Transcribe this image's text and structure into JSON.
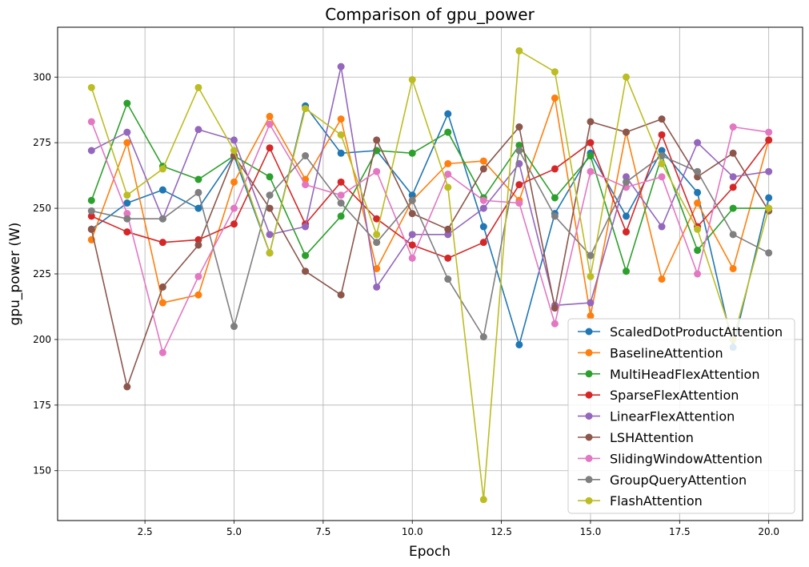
{
  "chart_data": {
    "type": "line",
    "title": "Comparison of gpu_power",
    "xlabel": "Epoch",
    "ylabel": "gpu_power (W)",
    "xlim": [
      0.05,
      20.95
    ],
    "ylim": [
      131,
      319
    ],
    "xticks": [
      2.5,
      5.0,
      7.5,
      10.0,
      12.5,
      15.0,
      17.5,
      20.0
    ],
    "xtick_labels": [
      "2.5",
      "5.0",
      "7.5",
      "10.0",
      "12.5",
      "15.0",
      "17.5",
      "20.0"
    ],
    "yticks": [
      150,
      175,
      200,
      225,
      250,
      275,
      300
    ],
    "ytick_labels": [
      "150",
      "175",
      "200",
      "225",
      "250",
      "275",
      "300"
    ],
    "grid": true,
    "legend_position": "lower-right",
    "x": [
      1,
      2,
      3,
      4,
      5,
      6,
      7,
      8,
      9,
      10,
      11,
      12,
      13,
      14,
      15,
      16,
      17,
      18,
      19,
      20
    ],
    "series": [
      {
        "name": "ScaledDotProductAttention",
        "color": "#1f77b4",
        "values": [
          242,
          252,
          257,
          250,
          270,
          233,
          289,
          271,
          272,
          255,
          286,
          243,
          198,
          248,
          271,
          247,
          272,
          256,
          197,
          254
        ]
      },
      {
        "name": "BaselineAttention",
        "color": "#ff7f0e",
        "values": [
          238,
          275,
          214,
          217,
          260,
          285,
          261,
          284,
          227,
          253,
          267,
          268,
          253,
          292,
          209,
          279,
          223,
          252,
          227,
          276
        ]
      },
      {
        "name": "MultiHeadFlexAttention",
        "color": "#2ca02c",
        "values": [
          253,
          290,
          266,
          261,
          270,
          262,
          232,
          247,
          272,
          271,
          279,
          254,
          274,
          254,
          270,
          226,
          270,
          234,
          250,
          250
        ]
      },
      {
        "name": "SparseFlexAttention",
        "color": "#d62728",
        "values": [
          247,
          241,
          237,
          238,
          244,
          273,
          244,
          260,
          246,
          236,
          231,
          237,
          259,
          265,
          275,
          241,
          278,
          243,
          258,
          276
        ]
      },
      {
        "name": "LinearFlexAttention",
        "color": "#9467bd",
        "values": [
          272,
          279,
          246,
          280,
          276,
          240,
          243,
          304,
          220,
          240,
          240,
          250,
          267,
          213,
          214,
          262,
          243,
          275,
          262,
          264
        ]
      },
      {
        "name": "LSHAttention",
        "color": "#8c564b",
        "values": [
          242,
          182,
          220,
          236,
          270,
          250,
          226,
          217,
          276,
          248,
          242,
          265,
          281,
          212,
          283,
          279,
          284,
          262,
          271,
          249
        ]
      },
      {
        "name": "SlidingWindowAttention",
        "color": "#e377c2",
        "values": [
          283,
          248,
          195,
          224,
          250,
          282,
          259,
          255,
          264,
          231,
          263,
          253,
          252,
          206,
          264,
          258,
          262,
          225,
          281,
          279
        ]
      },
      {
        "name": "GroupQueryAttention",
        "color": "#7f7f7f",
        "values": [
          249,
          246,
          246,
          256,
          205,
          255,
          270,
          252,
          237,
          253,
          223,
          201,
          272,
          247,
          232,
          260,
          270,
          264,
          240,
          233
        ]
      },
      {
        "name": "FlashAttention",
        "color": "#bcbd22",
        "values": [
          296,
          255,
          265,
          296,
          272,
          233,
          288,
          278,
          240,
          299,
          258,
          139,
          310,
          302,
          224,
          300,
          267,
          242,
          200,
          250
        ]
      }
    ]
  }
}
